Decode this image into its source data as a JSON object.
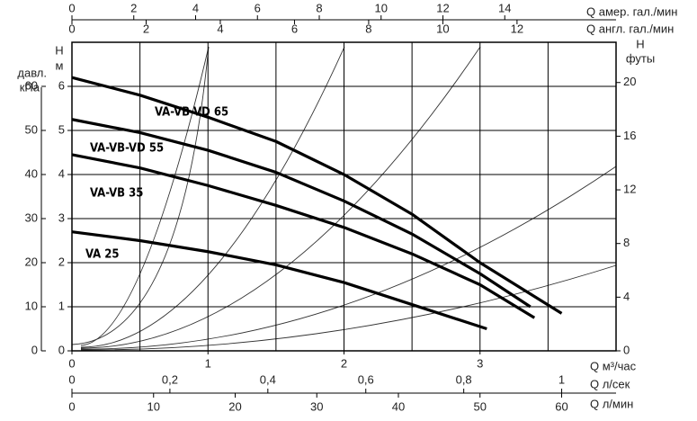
{
  "chart_data": {
    "type": "line",
    "x_label": "Q м³/час",
    "y_label": [
      "H",
      "м"
    ],
    "xlim": [
      0,
      4
    ],
    "xticks": [
      0,
      1,
      2,
      3
    ],
    "xgrid": [
      0.5,
      1,
      1.5,
      2,
      2.5,
      3,
      3.5
    ],
    "ylim": [
      0,
      7
    ],
    "yticks": [
      0,
      1,
      2,
      3,
      4,
      5,
      6
    ],
    "ygrid": [
      1,
      2,
      3,
      4,
      5,
      6
    ],
    "y2label": [
      "H",
      "футы"
    ],
    "y2lim": [
      0,
      23
    ],
    "y2ticks": [
      0,
      4,
      8,
      12,
      16,
      20
    ],
    "y3label": [
      "давл.",
      "кПа"
    ],
    "y3lim": [
      0,
      70
    ],
    "y3ticks": [
      0,
      10,
      20,
      30,
      40,
      50,
      60
    ],
    "top_axes": [
      {
        "label": "Q амер. гал./мин",
        "xlim": [
          0,
          17.6
        ],
        "xticks": [
          0,
          2,
          4,
          6,
          8,
          10,
          12,
          14
        ]
      },
      {
        "label": "Q англ. гал./мин",
        "xlim": [
          0,
          14.67
        ],
        "xticks": [
          0,
          2,
          4,
          6,
          8,
          10,
          12
        ]
      }
    ],
    "bottom_axes": [
      {
        "label": "Q л/сек",
        "xlim": [
          0,
          1.111
        ],
        "xticks": [
          0,
          {
            "value": 0.2,
            "label": "0,2"
          },
          {
            "value": 0.4,
            "label": "0,4"
          },
          {
            "value": 0.6,
            "label": "0,6"
          },
          {
            "value": 0.8,
            "label": "0,8"
          },
          1
        ]
      },
      {
        "label": "Q л/мин",
        "xlim": [
          0,
          66.67
        ],
        "xticks": [
          0,
          10,
          20,
          30,
          40,
          50,
          60
        ]
      }
    ],
    "series": [
      {
        "name": "VA-VB-VD 65",
        "color": "#000000",
        "x": [
          0,
          0.5,
          1,
          1.5,
          2,
          2.5,
          3,
          3.6
        ],
        "values": [
          6.2,
          5.8,
          5.3,
          4.75,
          4.0,
          3.1,
          2.0,
          0.85
        ]
      },
      {
        "name": "VA-VB-VD 55",
        "color": "#000000",
        "x": [
          0,
          0.5,
          1,
          1.5,
          2,
          2.5,
          3,
          3.37
        ],
        "values": [
          5.25,
          4.95,
          4.55,
          4.05,
          3.4,
          2.65,
          1.75,
          1.0
        ]
      },
      {
        "name": "VA-VB 35",
        "color": "#000000",
        "x": [
          0,
          0.5,
          1,
          1.5,
          2,
          2.5,
          3,
          3.4
        ],
        "values": [
          4.45,
          4.15,
          3.75,
          3.3,
          2.8,
          2.2,
          1.5,
          0.75
        ]
      },
      {
        "name": "VA 25",
        "color": "#000000",
        "x": [
          0,
          0.5,
          1,
          1.5,
          2,
          2.5,
          3.05
        ],
        "values": [
          2.7,
          2.5,
          2.25,
          1.95,
          1.55,
          1.05,
          0.5
        ]
      }
    ]
  }
}
